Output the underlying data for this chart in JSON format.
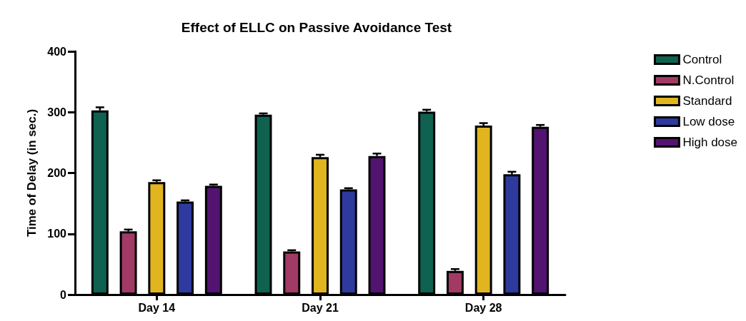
{
  "chart_data": {
    "type": "bar",
    "title": "Effect of ELLC on Passive Avoidance Test",
    "ylabel": "Time of Delay (in sec.)",
    "categories": [
      "Day 14",
      "Day 21",
      "Day 28"
    ],
    "series": [
      {
        "name": "Control",
        "color": "#0f6150",
        "values": [
          303,
          296,
          301
        ],
        "errors": [
          5,
          2,
          3
        ]
      },
      {
        "name": "N.Control",
        "color": "#a23a66",
        "values": [
          104,
          71,
          39
        ],
        "errors": [
          3,
          2,
          3
        ]
      },
      {
        "name": "Standard",
        "color": "#e0b520",
        "values": [
          185,
          226,
          278
        ],
        "errors": [
          3,
          4,
          4
        ]
      },
      {
        "name": "Low dose",
        "color": "#2e3a9e",
        "values": [
          153,
          173,
          198
        ],
        "errors": [
          2,
          2,
          4
        ]
      },
      {
        "name": "High dose",
        "color": "#521470",
        "values": [
          179,
          228,
          276
        ],
        "errors": [
          2,
          4,
          3
        ]
      }
    ],
    "ylim": [
      0,
      400
    ],
    "yticks": [
      0,
      100,
      200,
      300,
      400
    ],
    "grid": false,
    "legend": "top right"
  }
}
